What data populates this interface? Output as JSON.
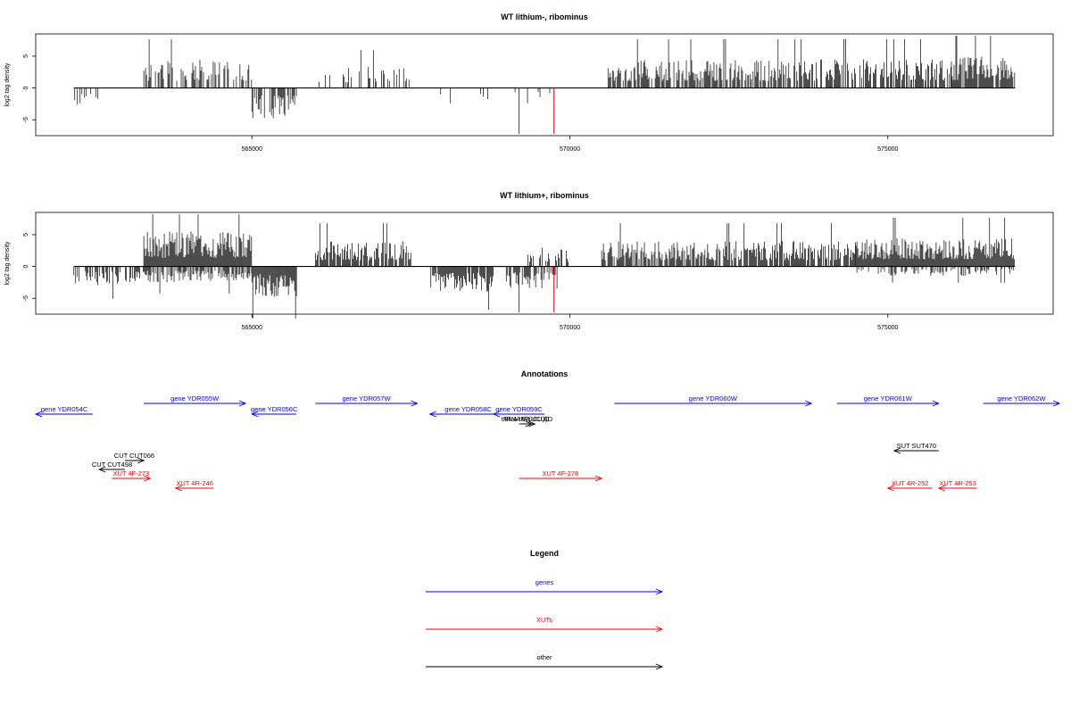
{
  "colors": {
    "gene": "#0000ff",
    "xut": "#ff0000",
    "other": "#000000",
    "red_bar": "#ff0000",
    "bar": "#000000"
  },
  "chart_data": [
    {
      "type": "bar",
      "title": "WT lithium-, ribominus",
      "ylabel": "log2 tag density",
      "xlim": [
        561600,
        577600
      ],
      "ylim": [
        -7.5,
        8.5
      ],
      "xticks": [
        565000,
        570000,
        575000
      ],
      "xtick_labels": [
        "565000",
        "570000",
        "575000"
      ],
      "yticks": [
        -5,
        0,
        5
      ],
      "ytick_labels": [
        "-5",
        "0",
        "5"
      ],
      "baseline_range": [
        562200,
        577000
      ],
      "segments": [
        {
          "from": 562200,
          "to": 562600,
          "dir": "neg",
          "amp": 3.0,
          "density": 0.35
        },
        {
          "from": 563300,
          "to": 565000,
          "dir": "pos",
          "amp": 4.5,
          "density": 0.5
        },
        {
          "from": 565000,
          "to": 565700,
          "dir": "neg",
          "amp": 4.8,
          "density": 0.6
        },
        {
          "from": 566000,
          "to": 567500,
          "dir": "pos",
          "amp": 3.5,
          "density": 0.35
        },
        {
          "from": 567800,
          "to": 568800,
          "dir": "neg",
          "amp": 2.5,
          "density": 0.1
        },
        {
          "from": 568900,
          "to": 569700,
          "dir": "neg",
          "amp": 2.5,
          "density": 0.1
        },
        {
          "from": 570600,
          "to": 576000,
          "dir": "pos",
          "amp": 4.5,
          "density": 0.7
        },
        {
          "from": 576000,
          "to": 577000,
          "dir": "pos",
          "amp": 5.0,
          "density": 0.9
        }
      ],
      "highlight_bars": [
        {
          "x": 569200,
          "y": -7.2
        },
        {
          "x": 569750,
          "y": -7.2
        }
      ]
    },
    {
      "type": "bar",
      "title": "WT lithium+, ribominus",
      "ylabel": "log2 tag density",
      "xlim": [
        561600,
        577600
      ],
      "ylim": [
        -7.5,
        8.5
      ],
      "xticks": [
        565000,
        570000,
        575000
      ],
      "xtick_labels": [
        "565000",
        "570000",
        "575000"
      ],
      "yticks": [
        -5,
        0,
        5
      ],
      "ytick_labels": [
        "-5",
        "0",
        "5"
      ],
      "baseline_range": [
        562200,
        577000
      ],
      "segments": [
        {
          "from": 562200,
          "to": 563300,
          "dir": "neg",
          "amp": 3.0,
          "density": 0.5
        },
        {
          "from": 563300,
          "to": 565000,
          "dir": "pos",
          "amp": 5.5,
          "density": 1.0
        },
        {
          "from": 563300,
          "to": 565000,
          "dir": "neg",
          "amp": 2.5,
          "density": 0.7
        },
        {
          "from": 565000,
          "to": 565700,
          "dir": "neg",
          "amp": 4.8,
          "density": 1.0
        },
        {
          "from": 566000,
          "to": 567500,
          "dir": "pos",
          "amp": 4.0,
          "density": 0.8
        },
        {
          "from": 567800,
          "to": 568800,
          "dir": "neg",
          "amp": 4.0,
          "density": 0.9
        },
        {
          "from": 569000,
          "to": 569800,
          "dir": "neg",
          "amp": 3.5,
          "density": 0.7
        },
        {
          "from": 569200,
          "to": 570000,
          "dir": "pos",
          "amp": 3.0,
          "density": 0.4
        },
        {
          "from": 570500,
          "to": 574500,
          "dir": "pos",
          "amp": 4.0,
          "density": 0.8
        },
        {
          "from": 574500,
          "to": 577000,
          "dir": "pos",
          "amp": 4.5,
          "density": 1.0
        },
        {
          "from": 574500,
          "to": 577000,
          "dir": "neg",
          "amp": 1.5,
          "density": 0.4
        }
      ],
      "highlight_bars": [
        {
          "x": 569200,
          "y": -7.2
        },
        {
          "x": 569750,
          "y": -7.2
        }
      ]
    }
  ],
  "annotations": {
    "title": "Annotations",
    "features": [
      {
        "label": "gene YDR054C",
        "kind": "gene",
        "start": 561600,
        "end": 562500,
        "dir": "left",
        "row": 1
      },
      {
        "label": "gene YDR055W",
        "kind": "gene",
        "start": 563300,
        "end": 564900,
        "dir": "right",
        "row": 0
      },
      {
        "label": "gene YDR056C",
        "kind": "gene",
        "start": 565000,
        "end": 565700,
        "dir": "left",
        "row": 1
      },
      {
        "label": "gene YDR057W",
        "kind": "gene",
        "start": 566000,
        "end": 567600,
        "dir": "right",
        "row": 0
      },
      {
        "label": "gene YDR058C",
        "kind": "gene",
        "start": 567800,
        "end": 569000,
        "dir": "left",
        "row": 1
      },
      {
        "label": "gene YDR059C",
        "kind": "gene",
        "start": 568800,
        "end": 569600,
        "dir": "left",
        "row": 1
      },
      {
        "label": "gene YDR060W",
        "kind": "gene",
        "start": 570700,
        "end": 573800,
        "dir": "right",
        "row": 0
      },
      {
        "label": "gene YDR061W",
        "kind": "gene",
        "start": 574200,
        "end": 575800,
        "dir": "right",
        "row": 0
      },
      {
        "label": "gene YDR062W",
        "kind": "gene",
        "start": 576500,
        "end": 577700,
        "dir": "right",
        "row": 0
      },
      {
        "label": "tRNA tR(UCU)D",
        "kind": "other",
        "start": 569200,
        "end": 569400,
        "dir": "right",
        "row": 2
      },
      {
        "label": "tRNA tR(UCU)D",
        "kind": "other",
        "start": 569250,
        "end": 569450,
        "dir": "right",
        "row": 2
      },
      {
        "label": "SUT SUT470",
        "kind": "other",
        "start": 575100,
        "end": 575800,
        "dir": "left",
        "row": 4
      },
      {
        "label": "CUT CUT066",
        "kind": "other",
        "start": 563000,
        "end": 563300,
        "dir": "right",
        "row": 5
      },
      {
        "label": "CUT CUT498",
        "kind": "other",
        "start": 562600,
        "end": 563000,
        "dir": "left",
        "row": 6
      },
      {
        "label": "XUT 4F-273",
        "kind": "xut",
        "start": 562800,
        "end": 563400,
        "dir": "right",
        "row": 7
      },
      {
        "label": "XUT 4R-246",
        "kind": "xut",
        "start": 563800,
        "end": 564400,
        "dir": "left",
        "row": 8
      },
      {
        "label": "XUT 4F-278",
        "kind": "xut",
        "start": 569200,
        "end": 570500,
        "dir": "right",
        "row": 7
      },
      {
        "label": "XUT 4R-252",
        "kind": "xut",
        "start": 575000,
        "end": 575700,
        "dir": "left",
        "row": 8
      },
      {
        "label": "XUT 4R-253",
        "kind": "xut",
        "start": 575800,
        "end": 576400,
        "dir": "left",
        "row": 8
      }
    ]
  },
  "legend": {
    "title": "Legend",
    "items": [
      {
        "label": "genes",
        "kind": "gene"
      },
      {
        "label": "XUTs",
        "kind": "xut"
      },
      {
        "label": "other",
        "kind": "other"
      }
    ]
  }
}
